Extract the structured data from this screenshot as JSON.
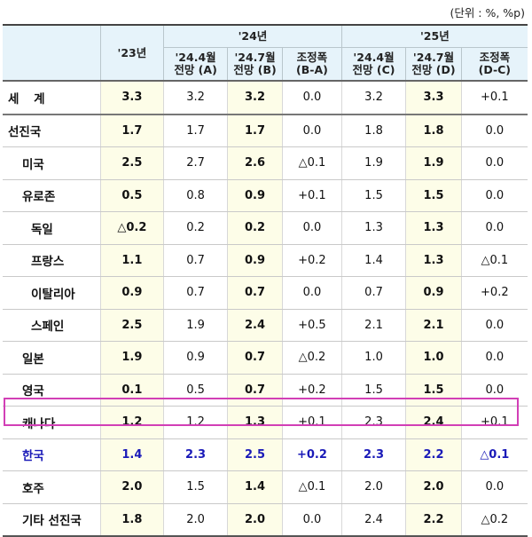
{
  "unit_note": "(단위 : %, %p)",
  "header": {
    "corner": "",
    "col_2023": "'23년",
    "group_2024": "'24년",
    "group_2025": "'25년",
    "sub_2024": [
      "'24.4월\n전망 (A)",
      "'24.7월\n전망 (B)",
      "조정폭\n(B-A)"
    ],
    "sub_2025": [
      "'24.4월\n전망 (C)",
      "'24.7월\n전망 (D)",
      "조정폭\n(D-C)"
    ],
    "sub_2024_lines": [
      [
        "'24.4월",
        "전망 (A)"
      ],
      [
        "'24.7월",
        "전망 (B)"
      ],
      [
        "조정폭",
        "(B-A)"
      ]
    ],
    "sub_2025_lines": [
      [
        "'24.4월",
        "전망 (C)"
      ],
      [
        "'24.7월",
        "전망 (D)"
      ],
      [
        "조정폭",
        "(D-C)"
      ]
    ]
  },
  "rows": [
    {
      "label": "세  계",
      "y23": "3.3",
      "a": "3.2",
      "b": "3.2",
      "ba": "0.0",
      "c": "3.2",
      "d": "3.3",
      "dc": "+0.1"
    },
    {
      "label": "선진국",
      "y23": "1.7",
      "a": "1.7",
      "b": "1.7",
      "ba": "0.0",
      "c": "1.8",
      "d": "1.8",
      "dc": "0.0"
    },
    {
      "label": "미국",
      "y23": "2.5",
      "a": "2.7",
      "b": "2.6",
      "ba": "△0.1",
      "c": "1.9",
      "d": "1.9",
      "dc": "0.0"
    },
    {
      "label": "유로존",
      "y23": "0.5",
      "a": "0.8",
      "b": "0.9",
      "ba": "+0.1",
      "c": "1.5",
      "d": "1.5",
      "dc": "0.0"
    },
    {
      "label": "독일",
      "y23": "△0.2",
      "a": "0.2",
      "b": "0.2",
      "ba": "0.0",
      "c": "1.3",
      "d": "1.3",
      "dc": "0.0"
    },
    {
      "label": "프랑스",
      "y23": "1.1",
      "a": "0.7",
      "b": "0.9",
      "ba": "+0.2",
      "c": "1.4",
      "d": "1.3",
      "dc": "△0.1"
    },
    {
      "label": "이탈리아",
      "y23": "0.9",
      "a": "0.7",
      "b": "0.7",
      "ba": "0.0",
      "c": "0.7",
      "d": "0.9",
      "dc": "+0.2"
    },
    {
      "label": "스페인",
      "y23": "2.5",
      "a": "1.9",
      "b": "2.4",
      "ba": "+0.5",
      "c": "2.1",
      "d": "2.1",
      "dc": "0.0"
    },
    {
      "label": "일본",
      "y23": "1.9",
      "a": "0.9",
      "b": "0.7",
      "ba": "△0.2",
      "c": "1.0",
      "d": "1.0",
      "dc": "0.0"
    },
    {
      "label": "영국",
      "y23": "0.1",
      "a": "0.5",
      "b": "0.7",
      "ba": "+0.2",
      "c": "1.5",
      "d": "1.5",
      "dc": "0.0"
    },
    {
      "label": "캐나다",
      "y23": "1.2",
      "a": "1.2",
      "b": "1.3",
      "ba": "+0.1",
      "c": "2.3",
      "d": "2.4",
      "dc": "+0.1"
    },
    {
      "label": "한국",
      "y23": "1.4",
      "a": "2.3",
      "b": "2.5",
      "ba": "+0.2",
      "c": "2.3",
      "d": "2.2",
      "dc": "△0.1"
    },
    {
      "label": "호주",
      "y23": "2.0",
      "a": "1.5",
      "b": "1.4",
      "ba": "△0.1",
      "c": "2.0",
      "d": "2.0",
      "dc": "0.0"
    },
    {
      "label": "기타 선진국",
      "y23": "1.8",
      "a": "2.0",
      "b": "2.0",
      "ba": "0.0",
      "c": "2.4",
      "d": "2.2",
      "dc": "△0.2"
    }
  ],
  "colors": {
    "header_bg": "#e6f3fa",
    "highlight_col_bg": "#fdfde8",
    "korea_text": "#1a1ab8",
    "korea_box": "#d23fb6"
  }
}
